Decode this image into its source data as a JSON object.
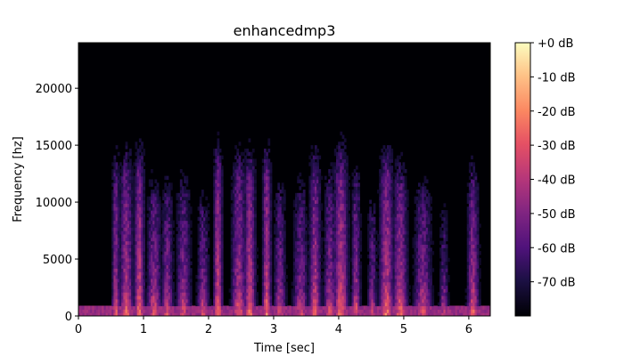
{
  "chart_data": {
    "type": "heatmap",
    "title": "enhancedmp3",
    "xlabel": "Time [sec]",
    "ylabel": "Frequency [hz]",
    "xlim": [
      0,
      6.33
    ],
    "ylim": [
      0,
      24000
    ],
    "x_ticks": [
      0,
      1,
      2,
      3,
      4,
      5,
      6
    ],
    "x_tick_labels": [
      "0",
      "1",
      "2",
      "3",
      "4",
      "5",
      "6"
    ],
    "y_ticks": [
      0,
      5000,
      10000,
      15000,
      20000
    ],
    "y_tick_labels": [
      "0",
      "5000",
      "10000",
      "15000",
      "20000"
    ],
    "colormap": "magma",
    "colorbar": {
      "range_db": [
        -80,
        0
      ],
      "ticks": [
        0,
        -10,
        -20,
        -30,
        -40,
        -50,
        -60,
        -70
      ],
      "tick_labels": [
        "+0 dB",
        "-10 dB",
        "-20 dB",
        "-30 dB",
        "-40 dB",
        "-50 dB",
        "-60 dB",
        "-70 dB"
      ]
    },
    "bursts": [
      {
        "t": 0.56,
        "w": 0.05,
        "fmax": 12000,
        "db": -42
      },
      {
        "t": 0.72,
        "w": 0.09,
        "fmax": 12000,
        "db": -40
      },
      {
        "t": 0.92,
        "w": 0.07,
        "fmax": 12000,
        "db": -36
      },
      {
        "t": 1.15,
        "w": 0.1,
        "fmax": 10000,
        "db": -45
      },
      {
        "t": 1.35,
        "w": 0.08,
        "fmax": 10000,
        "db": -46
      },
      {
        "t": 1.6,
        "w": 0.1,
        "fmax": 10500,
        "db": -47
      },
      {
        "t": 1.9,
        "w": 0.08,
        "fmax": 9000,
        "db": -48
      },
      {
        "t": 2.13,
        "w": 0.06,
        "fmax": 12000,
        "db": -35
      },
      {
        "t": 2.45,
        "w": 0.1,
        "fmax": 12000,
        "db": -42
      },
      {
        "t": 2.62,
        "w": 0.08,
        "fmax": 12000,
        "db": -38
      },
      {
        "t": 2.88,
        "w": 0.06,
        "fmax": 12000,
        "db": -36
      },
      {
        "t": 3.08,
        "w": 0.08,
        "fmax": 10000,
        "db": -48
      },
      {
        "t": 3.4,
        "w": 0.1,
        "fmax": 10000,
        "db": -48
      },
      {
        "t": 3.62,
        "w": 0.08,
        "fmax": 12000,
        "db": -40
      },
      {
        "t": 3.85,
        "w": 0.08,
        "fmax": 11000,
        "db": -45
      },
      {
        "t": 4.02,
        "w": 0.1,
        "fmax": 12000,
        "db": -36
      },
      {
        "t": 4.25,
        "w": 0.06,
        "fmax": 11000,
        "db": -44
      },
      {
        "t": 4.5,
        "w": 0.06,
        "fmax": 9000,
        "db": -50
      },
      {
        "t": 4.72,
        "w": 0.1,
        "fmax": 12000,
        "db": -38
      },
      {
        "t": 4.93,
        "w": 0.1,
        "fmax": 11000,
        "db": -40
      },
      {
        "t": 5.28,
        "w": 0.12,
        "fmax": 10000,
        "db": -46
      },
      {
        "t": 5.6,
        "w": 0.06,
        "fmax": 8000,
        "db": -52
      },
      {
        "t": 6.05,
        "w": 0.08,
        "fmax": 11000,
        "db": -42
      }
    ]
  }
}
